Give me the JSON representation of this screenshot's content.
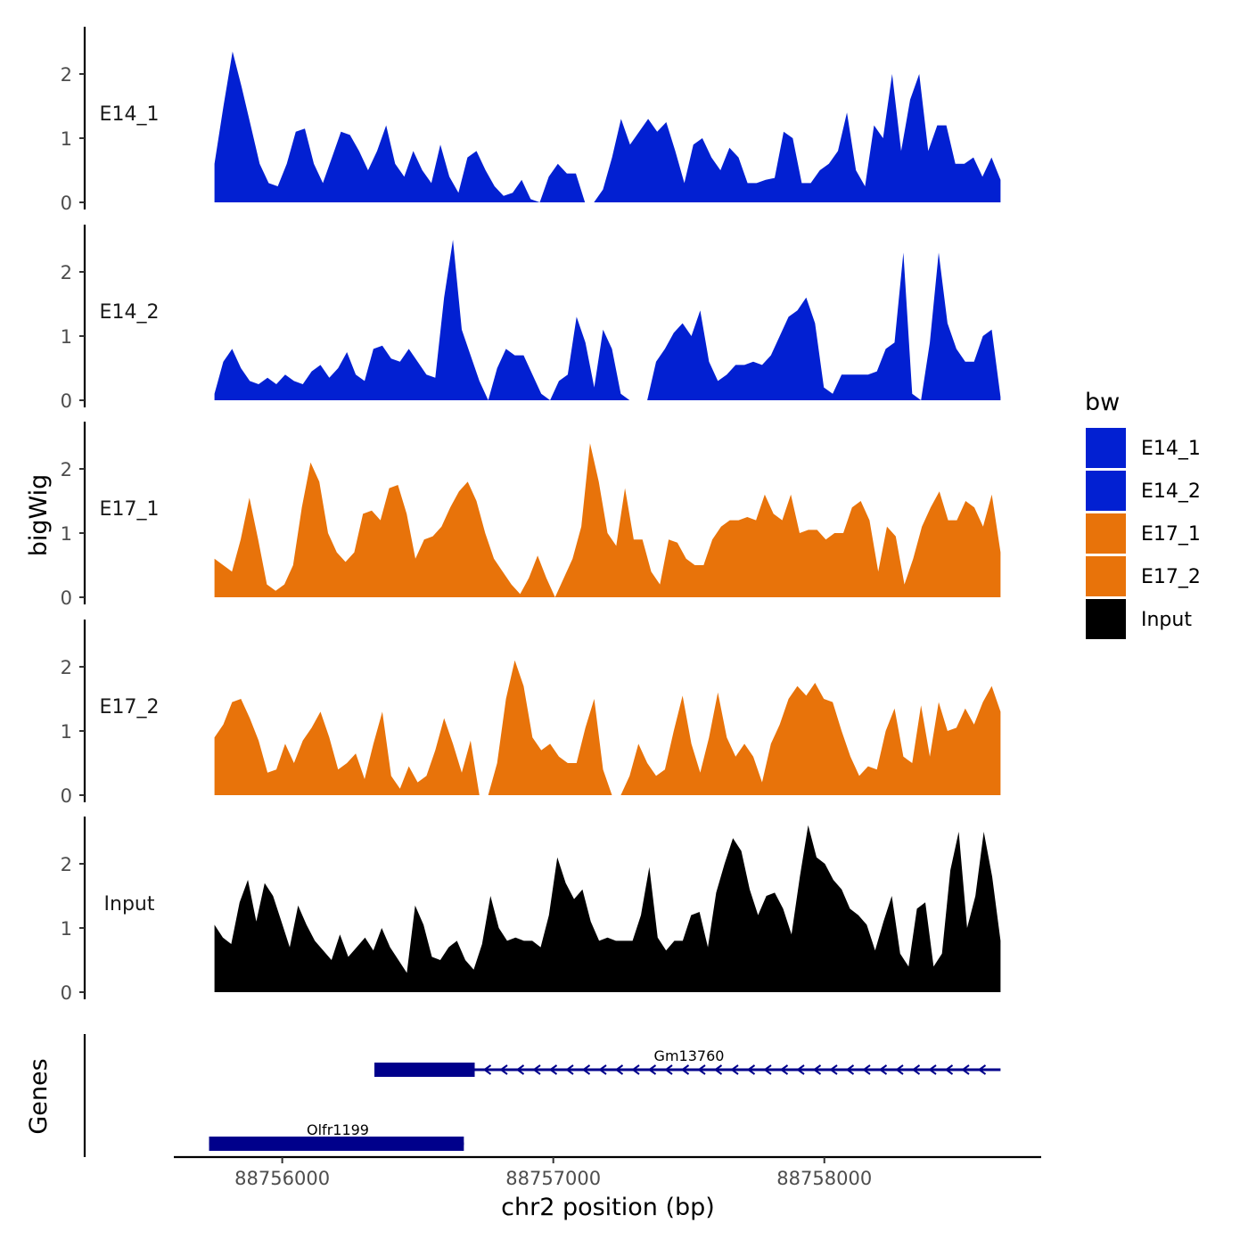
{
  "chart_data": {
    "type": "area",
    "ylabel": "bigWig",
    "xlabel": "chr2 position (bp)",
    "xlim": [
      88755600,
      88758800
    ],
    "data_xrange": [
      88755750,
      88758650
    ],
    "ylim": [
      0,
      2.7
    ],
    "yticks": [
      0,
      1,
      2
    ],
    "ytick_labels": [
      "0",
      "1",
      "2"
    ],
    "xticks": [
      88756000,
      88757000,
      88758000
    ],
    "xtick_labels": [
      "88756000",
      "88757000",
      "88758000"
    ],
    "legend": {
      "title": "bw",
      "position": "right",
      "entries": [
        {
          "label": "E14_1",
          "color": "#0220D2"
        },
        {
          "label": "E14_2",
          "color": "#0220D2"
        },
        {
          "label": "E17_1",
          "color": "#E8730A"
        },
        {
          "label": "E17_2",
          "color": "#E8730A"
        },
        {
          "label": "Input",
          "color": "#000000"
        }
      ]
    },
    "series": [
      {
        "name": "E14_1",
        "color": "#0220D2",
        "values": [
          0.6,
          1.5,
          2.35,
          1.8,
          1.2,
          0.6,
          0.3,
          0.25,
          0.6,
          1.1,
          1.15,
          0.6,
          0.3,
          0.7,
          1.1,
          1.05,
          0.8,
          0.5,
          0.8,
          1.2,
          0.6,
          0.4,
          0.8,
          0.5,
          0.3,
          0.9,
          0.4,
          0.15,
          0.7,
          0.8,
          0.5,
          0.25,
          0.1,
          0.15,
          0.35,
          0.05,
          0.0,
          0.4,
          0.6,
          0.45,
          0.45,
          0.0,
          0.0,
          0.2,
          0.7,
          1.3,
          0.9,
          1.1,
          1.3,
          1.1,
          1.25,
          0.8,
          0.3,
          0.9,
          1.0,
          0.7,
          0.5,
          0.85,
          0.7,
          0.3,
          0.3,
          0.35,
          0.38,
          1.1,
          1.0,
          0.3,
          0.3,
          0.5,
          0.6,
          0.8,
          1.4,
          0.5,
          0.25,
          1.2,
          1.0,
          2.0,
          0.8,
          1.6,
          2.0,
          0.8,
          1.2,
          1.2,
          0.6,
          0.6,
          0.7,
          0.4,
          0.7,
          0.35
        ]
      },
      {
        "name": "E14_2",
        "color": "#0220D2",
        "values": [
          0.1,
          0.6,
          0.8,
          0.5,
          0.3,
          0.25,
          0.35,
          0.25,
          0.4,
          0.3,
          0.25,
          0.45,
          0.55,
          0.35,
          0.5,
          0.75,
          0.4,
          0.3,
          0.8,
          0.85,
          0.65,
          0.6,
          0.8,
          0.6,
          0.4,
          0.35,
          1.6,
          2.5,
          1.1,
          0.7,
          0.3,
          0.0,
          0.5,
          0.8,
          0.7,
          0.7,
          0.4,
          0.1,
          0.0,
          0.3,
          0.4,
          1.3,
          0.9,
          0.2,
          1.1,
          0.8,
          0.1,
          0.0,
          0.0,
          0.0,
          0.6,
          0.8,
          1.05,
          1.2,
          1.0,
          1.4,
          0.6,
          0.3,
          0.4,
          0.55,
          0.55,
          0.6,
          0.55,
          0.7,
          1.0,
          1.3,
          1.4,
          1.6,
          1.2,
          0.2,
          0.1,
          0.4,
          0.4,
          0.4,
          0.4,
          0.45,
          0.8,
          0.9,
          2.3,
          0.1,
          0.0,
          0.9,
          2.3,
          1.2,
          0.8,
          0.6,
          0.6,
          1.0,
          1.1,
          0.05
        ]
      },
      {
        "name": "E17_1",
        "color": "#E8730A",
        "values": [
          0.6,
          0.5,
          0.4,
          0.9,
          1.55,
          0.9,
          0.2,
          0.1,
          0.2,
          0.5,
          1.4,
          2.1,
          1.8,
          1.0,
          0.7,
          0.55,
          0.7,
          1.3,
          1.35,
          1.2,
          1.7,
          1.75,
          1.3,
          0.6,
          0.9,
          0.95,
          1.1,
          1.4,
          1.65,
          1.8,
          1.5,
          1.0,
          0.6,
          0.4,
          0.2,
          0.05,
          0.3,
          0.65,
          0.3,
          0.0,
          0.3,
          0.6,
          1.1,
          2.4,
          1.8,
          1.0,
          0.8,
          1.7,
          0.9,
          0.9,
          0.4,
          0.2,
          0.9,
          0.85,
          0.6,
          0.5,
          0.5,
          0.9,
          1.1,
          1.2,
          1.2,
          1.25,
          1.2,
          1.6,
          1.3,
          1.2,
          1.6,
          1.0,
          1.05,
          1.05,
          0.9,
          1.0,
          1.0,
          1.4,
          1.5,
          1.2,
          0.4,
          1.1,
          0.95,
          0.2,
          0.6,
          1.1,
          1.4,
          1.65,
          1.2,
          1.2,
          1.5,
          1.4,
          1.1,
          1.6,
          0.7
        ]
      },
      {
        "name": "E17_2",
        "color": "#E8730A",
        "values": [
          0.9,
          1.1,
          1.45,
          1.5,
          1.2,
          0.85,
          0.35,
          0.4,
          0.8,
          0.5,
          0.85,
          1.05,
          1.3,
          0.9,
          0.4,
          0.5,
          0.65,
          0.25,
          0.8,
          1.3,
          0.3,
          0.1,
          0.45,
          0.2,
          0.3,
          0.7,
          1.2,
          0.8,
          0.35,
          0.85,
          0.0,
          0.0,
          0.5,
          1.5,
          2.1,
          1.7,
          0.9,
          0.7,
          0.8,
          0.6,
          0.5,
          0.5,
          1.05,
          1.5,
          0.4,
          0.0,
          0.0,
          0.3,
          0.8,
          0.5,
          0.3,
          0.4,
          1.0,
          1.55,
          0.8,
          0.35,
          0.9,
          1.6,
          0.9,
          0.6,
          0.8,
          0.6,
          0.2,
          0.8,
          1.1,
          1.5,
          1.7,
          1.55,
          1.75,
          1.5,
          1.45,
          1.0,
          0.6,
          0.3,
          0.45,
          0.4,
          1.0,
          1.35,
          0.6,
          0.5,
          1.4,
          0.6,
          1.45,
          1.0,
          1.05,
          1.35,
          1.1,
          1.45,
          1.7,
          1.3
        ]
      },
      {
        "name": "Input",
        "color": "#000000",
        "values": [
          1.05,
          0.85,
          0.75,
          1.4,
          1.75,
          1.1,
          1.7,
          1.5,
          1.1,
          0.7,
          1.35,
          1.05,
          0.8,
          0.65,
          0.5,
          0.9,
          0.55,
          0.7,
          0.85,
          0.65,
          1.0,
          0.7,
          0.5,
          0.3,
          1.35,
          1.05,
          0.55,
          0.5,
          0.7,
          0.8,
          0.5,
          0.35,
          0.75,
          1.5,
          1.0,
          0.8,
          0.85,
          0.8,
          0.8,
          0.7,
          1.2,
          2.1,
          1.7,
          1.45,
          1.6,
          1.1,
          0.8,
          0.85,
          0.8,
          0.8,
          0.8,
          1.2,
          1.95,
          0.85,
          0.65,
          0.8,
          0.8,
          1.2,
          1.25,
          0.7,
          1.55,
          2.0,
          2.4,
          2.2,
          1.6,
          1.2,
          1.5,
          1.55,
          1.3,
          0.9,
          1.8,
          2.6,
          2.1,
          2.0,
          1.75,
          1.6,
          1.3,
          1.2,
          1.05,
          0.65,
          1.1,
          1.5,
          0.6,
          0.4,
          1.3,
          1.4,
          0.4,
          0.6,
          1.9,
          2.5,
          1.0,
          1.5,
          2.5,
          1.8,
          0.8
        ]
      }
    ],
    "genes_track": {
      "label": "Genes",
      "genes": [
        {
          "name": "Gm13760",
          "start": 88756340,
          "end": 88758650,
          "strand": "-",
          "exon": [
            88756340,
            88756710
          ]
        },
        {
          "name": "Olfr1199",
          "start": 88755730,
          "end": 88756670,
          "strand": "+",
          "exon": [
            88755730,
            88756670
          ]
        }
      ],
      "gene_color": "#00008B"
    }
  }
}
